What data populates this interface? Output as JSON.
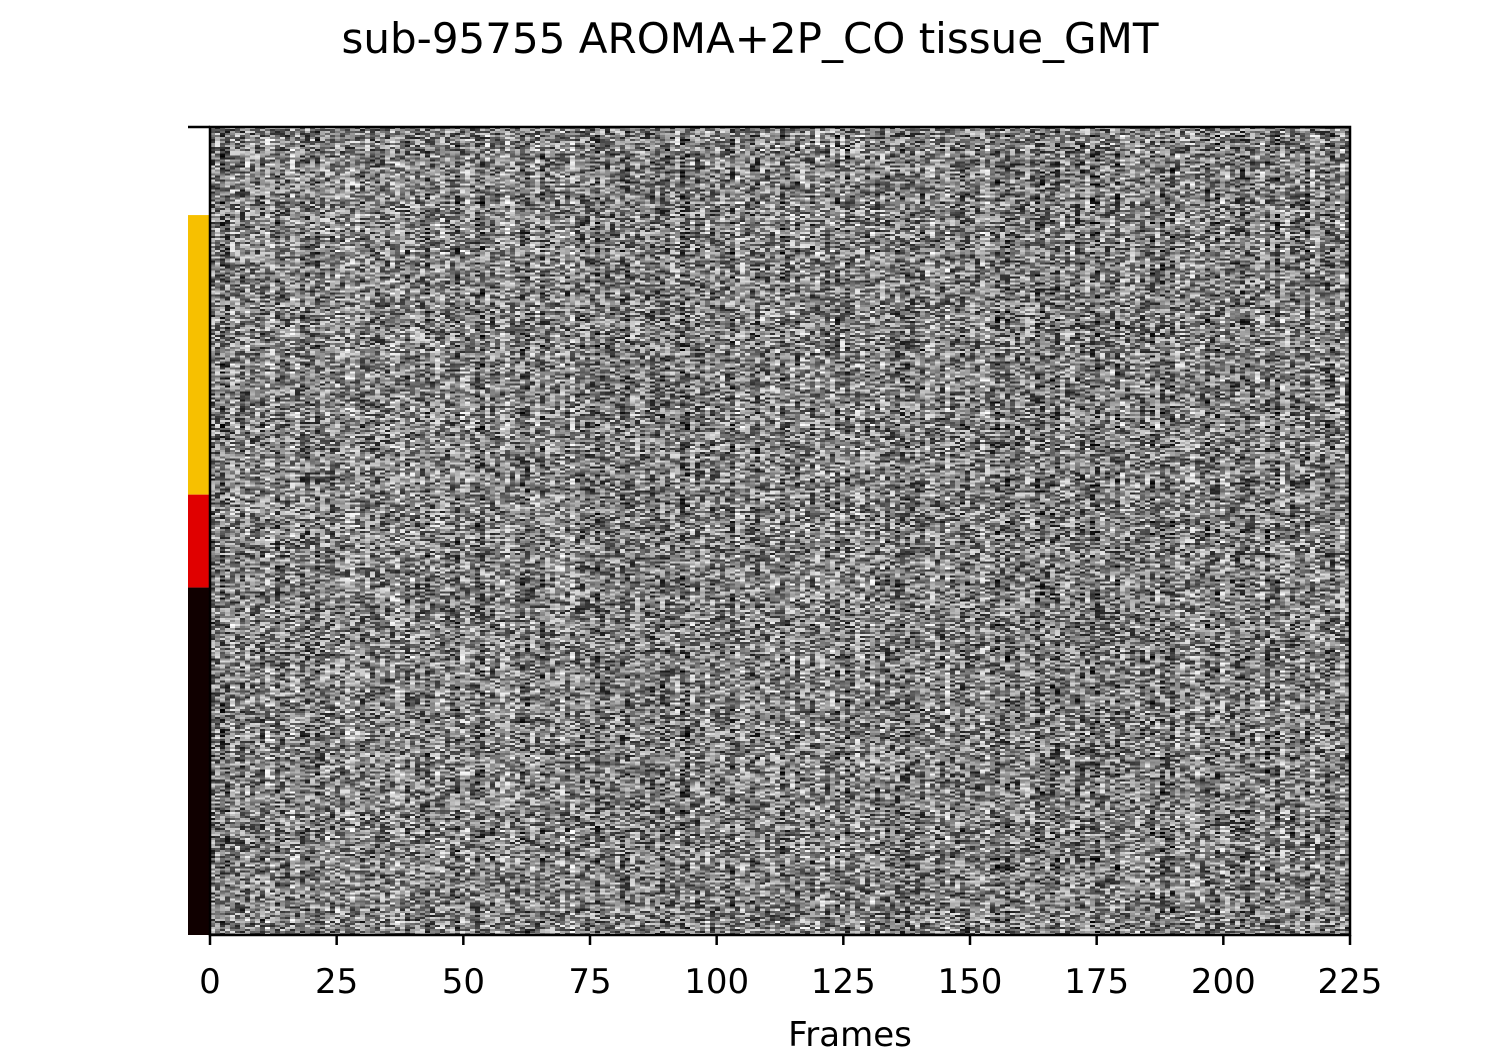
{
  "chart_data": {
    "type": "heatmap",
    "title": "sub-95755 AROMA+2P_CO tissue_GMT",
    "xlabel": "Frames",
    "ylabel": "",
    "xlim": [
      0,
      225
    ],
    "x_ticks": [
      0,
      25,
      50,
      75,
      100,
      125,
      150,
      175,
      200,
      225
    ],
    "colormap": "gray",
    "tissue_segments": [
      {
        "row_start": 0.0,
        "row_end": 0.109,
        "color": "#ffffff"
      },
      {
        "row_start": 0.109,
        "row_end": 0.455,
        "color": "#f7c000"
      },
      {
        "row_start": 0.455,
        "row_end": 0.57,
        "color": "#e00000"
      },
      {
        "row_start": 0.57,
        "row_end": 1.0,
        "color": "#100000"
      }
    ]
  }
}
